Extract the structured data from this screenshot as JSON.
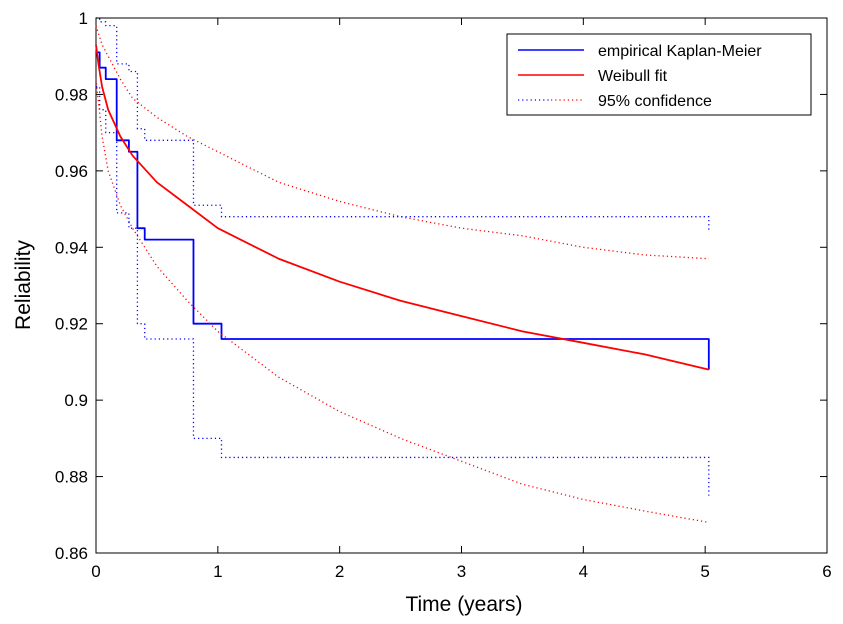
{
  "chart_data": {
    "type": "line",
    "title": "",
    "xlabel": "Time (years)",
    "ylabel": "Reliability",
    "xlim": [
      0,
      6
    ],
    "ylim": [
      0.86,
      1.0
    ],
    "xticks": [
      0,
      1,
      2,
      3,
      4,
      5,
      6
    ],
    "yticks": [
      0.86,
      0.88,
      0.9,
      0.92,
      0.94,
      0.96,
      0.98,
      1
    ],
    "xtick_labels": [
      "0",
      "1",
      "2",
      "3",
      "4",
      "5",
      "6"
    ],
    "ytick_labels": [
      "0.86",
      "0.88",
      "0.9",
      "0.92",
      "0.94",
      "0.96",
      "0.98",
      "1"
    ],
    "grid": false,
    "legend_position": "top-right",
    "legend": [
      "empirical Kaplan-Meier",
      "Weibull fit",
      "95% confidence"
    ],
    "series": [
      {
        "name": "empirical Kaplan-Meier",
        "kind": "step",
        "color": "#0000ff",
        "style": "solid",
        "x": [
          0,
          0.03,
          0.08,
          0.17,
          0.27,
          0.34,
          0.4,
          0.8,
          1.03,
          5.03,
          5.03
        ],
        "y": [
          0.991,
          0.987,
          0.984,
          0.968,
          0.965,
          0.945,
          0.942,
          0.92,
          0.916,
          0.916,
          0.908
        ]
      },
      {
        "name": "Weibull fit",
        "kind": "curve",
        "color": "#ff0000",
        "style": "solid",
        "x": [
          0,
          0.02,
          0.05,
          0.1,
          0.2,
          0.3,
          0.5,
          0.75,
          1,
          1.5,
          2,
          2.5,
          3,
          3.5,
          4,
          4.5,
          5.03
        ],
        "y": [
          0.993,
          0.988,
          0.982,
          0.976,
          0.969,
          0.964,
          0.957,
          0.951,
          0.945,
          0.937,
          0.931,
          0.926,
          0.922,
          0.918,
          0.915,
          0.912,
          0.908
        ]
      },
      {
        "name": "Weibull lower 95% bound",
        "kind": "curve",
        "color": "#ff0000",
        "style": "dotted",
        "x": [
          0,
          0.05,
          0.1,
          0.2,
          0.3,
          0.5,
          0.75,
          1,
          1.5,
          2,
          2.5,
          3,
          3.5,
          4,
          4.5,
          5.03
        ],
        "y": [
          0.984,
          0.969,
          0.96,
          0.951,
          0.945,
          0.935,
          0.926,
          0.918,
          0.906,
          0.897,
          0.89,
          0.884,
          0.878,
          0.874,
          0.871,
          0.868
        ]
      },
      {
        "name": "Weibull upper 95% bound",
        "kind": "curve",
        "color": "#ff0000",
        "style": "dotted",
        "x": [
          0,
          0.05,
          0.1,
          0.2,
          0.3,
          0.5,
          0.75,
          1,
          1.5,
          2,
          2.5,
          3,
          3.5,
          4,
          4.5,
          5.03
        ],
        "y": [
          0.998,
          0.993,
          0.99,
          0.984,
          0.979,
          0.974,
          0.969,
          0.965,
          0.957,
          0.952,
          0.948,
          0.945,
          0.943,
          0.94,
          0.938,
          0.937
        ]
      },
      {
        "name": "Kaplan-Meier upper 95% bound",
        "kind": "step",
        "color": "#0000ff",
        "style": "dotted",
        "x": [
          0,
          0.03,
          0.08,
          0.17,
          0.27,
          0.34,
          0.4,
          0.8,
          1.03,
          5.03,
          5.03
        ],
        "y": [
          1.0,
          0.999,
          0.998,
          0.988,
          0.986,
          0.971,
          0.968,
          0.951,
          0.948,
          0.948,
          0.944
        ]
      },
      {
        "name": "Kaplan-Meier lower 95% bound",
        "kind": "step",
        "color": "#0000ff",
        "style": "dotted",
        "x": [
          0,
          0.03,
          0.08,
          0.17,
          0.27,
          0.34,
          0.4,
          0.8,
          1.03,
          5.03,
          5.03
        ],
        "y": [
          0.982,
          0.976,
          0.97,
          0.949,
          0.945,
          0.92,
          0.916,
          0.89,
          0.885,
          0.885,
          0.875
        ]
      }
    ]
  }
}
